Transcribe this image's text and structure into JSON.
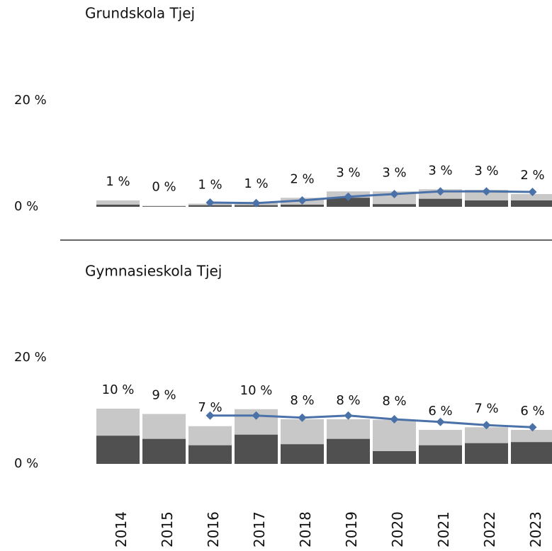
{
  "chart_data": [
    {
      "type": "bar",
      "title": "Grundskola Tjej",
      "ylim": [
        0,
        20
      ],
      "yticks": [
        {
          "value": 0,
          "label": "0 %"
        },
        {
          "value": 20,
          "label": "20 %"
        }
      ],
      "series": [
        {
          "color": "#c8c8c8",
          "values": [
            1.2,
            0.2,
            0.6,
            0.8,
            1.7,
            2.9,
            2.9,
            3.3,
            3.2,
            2.4
          ],
          "value_labels": [
            "1 %",
            "0 %",
            "1 %",
            "1 %",
            "2 %",
            "3 %",
            "3 %",
            "3 %",
            "3 %",
            "2 %"
          ]
        },
        {
          "color": "#505050",
          "values": [
            0.4,
            0.1,
            0.3,
            0.3,
            0.4,
            1.7,
            0.5,
            1.5,
            1.2,
            1.2
          ]
        },
        {
          "type": "line",
          "color": "#4a72a8",
          "values": [
            null,
            null,
            0.8,
            0.7,
            1.2,
            1.9,
            2.4,
            2.9,
            2.9,
            2.8
          ]
        }
      ]
    },
    {
      "type": "bar",
      "title": "Gymnasieskola Tjej",
      "categories": [
        "2014",
        "2015",
        "2016",
        "2017",
        "2018",
        "2019",
        "2020",
        "2021",
        "2022",
        "2023"
      ],
      "ylim": [
        0,
        20
      ],
      "yticks": [
        {
          "value": 0,
          "label": "0 %"
        },
        {
          "value": 20,
          "label": "20 %"
        }
      ],
      "series": [
        {
          "color": "#c8c8c8",
          "values": [
            10.4,
            9.4,
            7.1,
            10.3,
            8.4,
            8.4,
            8.3,
            6.4,
            6.9,
            6.4
          ],
          "value_labels": [
            "10 %",
            "9 %",
            "7 %",
            "10 %",
            "8 %",
            "8 %",
            "8 %",
            "6 %",
            "7 %",
            "6 %"
          ]
        },
        {
          "color": "#505050",
          "values": [
            5.3,
            4.7,
            3.5,
            5.5,
            3.7,
            4.7,
            2.4,
            3.5,
            3.9,
            4.1
          ]
        },
        {
          "type": "line",
          "color": "#4a72a8",
          "values": [
            null,
            null,
            9.1,
            9.1,
            8.7,
            9.1,
            8.4,
            7.9,
            7.3,
            6.9
          ]
        }
      ]
    }
  ]
}
